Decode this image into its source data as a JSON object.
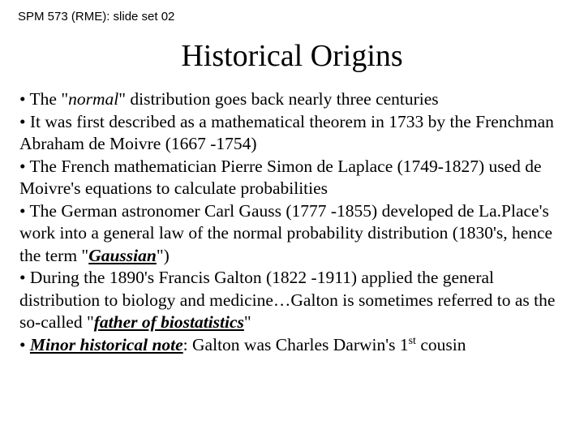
{
  "header": "SPM 573 (RME): slide set 02",
  "title": "Historical Origins",
  "bullets": {
    "b0_pre": "• The \"",
    "b0_norm": "normal",
    "b0_post": "\" distribution goes back nearly three centuries",
    "b1": "• It was first described as a mathematical theorem in 1733 by the Frenchman Abraham de Moivre (1667 -1754)",
    "b2": "• The French mathematician Pierre Simon de Laplace (1749-1827) used de Moivre's equations to calculate probabilities",
    "b3_pre": "• The German astronomer Carl Gauss (1777 -1855) developed de La.Place's work into a general law of the normal probability distribution (1830's, hence the term \"",
    "b3_gauss": "Gaussian",
    "b3_post": "\")",
    "b4_pre": "• During the 1890's Francis Galton (1822 -1911) applied the general distribution to biology and medicine…Galton is sometimes referred to as the so-called \"",
    "b4_father": "father of biostatistics",
    "b4_post": "\"",
    "b5_pre": "• ",
    "b5_minor": "Minor historical note",
    "b5_mid": ": Galton was Charles Darwin's 1",
    "b5_sup": "st",
    "b5_end": " cousin"
  },
  "style": {
    "background_color": "#ffffff",
    "text_color": "#000000",
    "header_fontsize": 15,
    "title_fontsize": 38,
    "body_fontsize": 21.5,
    "line_height": 1.28,
    "font_family_body": "Times New Roman",
    "font_family_header": "Arial"
  }
}
